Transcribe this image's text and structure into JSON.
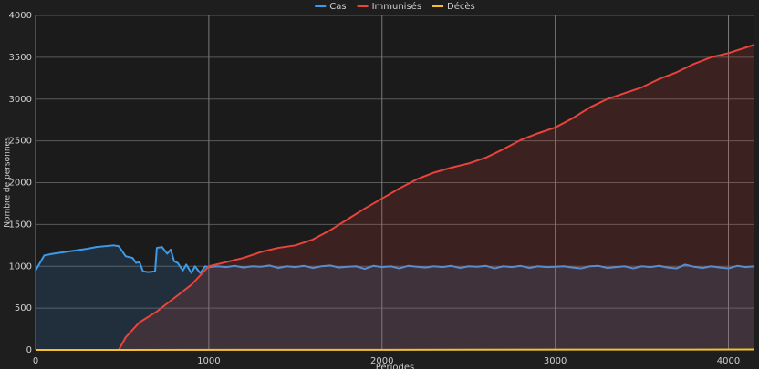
{
  "chart_data": {
    "type": "line",
    "area": true,
    "x_label": "Périodes",
    "y_label": "Nombre de personnes",
    "xlim": [
      0,
      4150
    ],
    "ylim": [
      0,
      4000
    ],
    "xticks": [
      0,
      1000,
      2000,
      3000,
      4000
    ],
    "yticks": [
      0,
      500,
      1000,
      1500,
      2000,
      2500,
      3000,
      3500,
      4000
    ],
    "grid": true,
    "legend": "top",
    "series": [
      {
        "name": "Cas",
        "color": "#3d9ae8",
        "x": [
          0,
          50,
          100,
          200,
          300,
          350,
          450,
          480,
          520,
          560,
          580,
          600,
          620,
          650,
          690,
          700,
          730,
          760,
          780,
          800,
          820,
          850,
          870,
          900,
          920,
          950,
          980,
          1000,
          1050,
          1100,
          1150,
          1200,
          1250,
          1300,
          1350,
          1400,
          1450,
          1500,
          1550,
          1600,
          1650,
          1700,
          1750,
          1800,
          1850,
          1900,
          1950,
          2000,
          2050,
          2100,
          2150,
          2200,
          2250,
          2300,
          2350,
          2400,
          2450,
          2500,
          2550,
          2600,
          2650,
          2700,
          2750,
          2800,
          2850,
          2900,
          2950,
          3000,
          3050,
          3100,
          3150,
          3200,
          3250,
          3300,
          3350,
          3400,
          3450,
          3500,
          3550,
          3600,
          3650,
          3700,
          3750,
          3800,
          3850,
          3900,
          3950,
          4000,
          4050,
          4100,
          4150
        ],
        "values": [
          950,
          1130,
          1150,
          1180,
          1210,
          1230,
          1250,
          1240,
          1120,
          1100,
          1040,
          1050,
          940,
          930,
          940,
          1220,
          1230,
          1150,
          1200,
          1060,
          1040,
          950,
          1020,
          920,
          1000,
          920,
          1000,
          990,
          1000,
          990,
          1005,
          985,
          1000,
          995,
          1010,
          980,
          1000,
          990,
          1005,
          980,
          1000,
          1010,
          985,
          995,
          1000,
          970,
          1005,
          990,
          1000,
          975,
          1005,
          995,
          985,
          1000,
          990,
          1005,
          980,
          1000,
          995,
          1005,
          975,
          1000,
          990,
          1005,
          980,
          1000,
          990,
          995,
          1000,
          985,
          975,
          1000,
          1005,
          980,
          990,
          1000,
          975,
          1000,
          990,
          1005,
          985,
          975,
          1020,
          995,
          980,
          1000,
          985,
          975,
          1005,
          990,
          1000
        ]
      },
      {
        "name": "Immunisés",
        "color": "#e8443c",
        "x": [
          480,
          520,
          600,
          700,
          800,
          900,
          1000,
          1100,
          1200,
          1300,
          1400,
          1500,
          1600,
          1700,
          1800,
          1900,
          2000,
          2100,
          2200,
          2300,
          2400,
          2500,
          2600,
          2700,
          2800,
          2900,
          3000,
          3100,
          3200,
          3300,
          3400,
          3500,
          3600,
          3700,
          3800,
          3900,
          4000,
          4150
        ],
        "values": [
          0,
          150,
          330,
          460,
          620,
          780,
          1000,
          1050,
          1100,
          1170,
          1220,
          1250,
          1320,
          1430,
          1560,
          1690,
          1810,
          1930,
          2040,
          2120,
          2180,
          2230,
          2300,
          2400,
          2510,
          2590,
          2660,
          2770,
          2900,
          3000,
          3070,
          3140,
          3240,
          3320,
          3420,
          3500,
          3550,
          3650
        ]
      },
      {
        "name": "Décès",
        "color": "#f2c230",
        "x": [
          0,
          2000,
          4150
        ],
        "values": [
          0,
          2,
          5
        ]
      }
    ]
  }
}
